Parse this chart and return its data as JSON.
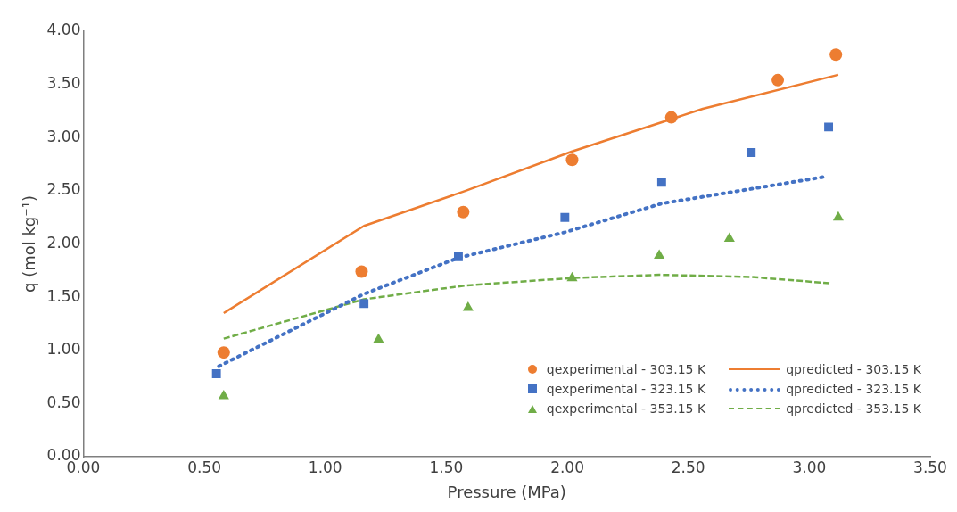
{
  "chart_data": {
    "type": "scatter",
    "xlabel": "Pressure (MPa)",
    "ylabel": "q (mol kg⁻¹)",
    "xlim": [
      0,
      3.5
    ],
    "xticks": [
      {
        "value": 0,
        "label": "0.00"
      },
      {
        "value": 0.5,
        "label": "0.50"
      },
      {
        "value": 1,
        "label": "1.00"
      },
      {
        "value": 1.5,
        "label": "1.50"
      },
      {
        "value": 2,
        "label": "2.00"
      },
      {
        "value": 2.5,
        "label": "2.50"
      },
      {
        "value": 3,
        "label": "3.00"
      },
      {
        "value": 3.5,
        "label": "3.50"
      }
    ],
    "ylim": [
      0,
      4
    ],
    "yticks": [
      {
        "value": 0,
        "label": "0.00"
      },
      {
        "value": 0.5,
        "label": "0.50"
      },
      {
        "value": 1,
        "label": "1.00"
      },
      {
        "value": 1.5,
        "label": "1.50"
      },
      {
        "value": 2,
        "label": "2.00"
      },
      {
        "value": 2.5,
        "label": "2.50"
      },
      {
        "value": 3,
        "label": "3.00"
      },
      {
        "value": 3.5,
        "label": "3.50"
      },
      {
        "value": 4,
        "label": "4.00"
      }
    ],
    "grid": false,
    "legend": "bottom right",
    "series": [
      {
        "name": "qexperimental - 303.15 K",
        "type": "scatter",
        "marker": "circle",
        "color": "#ed7d31",
        "x": [
          0.58,
          1.15,
          1.57,
          2.02,
          2.43,
          2.87,
          3.11
        ],
        "values": [
          0.98,
          1.74,
          2.3,
          2.79,
          3.19,
          3.54,
          3.78
        ]
      },
      {
        "name": "qpredicted - 303.15 K",
        "type": "line",
        "marker": "none",
        "line_style": "solid",
        "color": "#ed7d31",
        "x": [
          0.58,
          1.16,
          1.58,
          2.02,
          2.56,
          3.12
        ],
        "values": [
          1.35,
          2.17,
          2.5,
          2.87,
          3.27,
          3.59
        ]
      },
      {
        "name": "qexperimental - 323.15 K",
        "type": "scatter",
        "marker": "square",
        "color": "#4472c4",
        "x": [
          0.55,
          1.16,
          1.55,
          1.99,
          2.39,
          2.76,
          3.08
        ],
        "values": [
          0.78,
          1.44,
          1.88,
          2.25,
          2.58,
          2.86,
          3.1
        ]
      },
      {
        "name": "qpredicted - 323.15 K",
        "type": "line",
        "marker": "none",
        "line_style": "dotted",
        "color": "#4472c4",
        "x": [
          0.56,
          1.16,
          1.55,
          1.99,
          2.39,
          3.06
        ],
        "values": [
          0.85,
          1.53,
          1.87,
          2.11,
          2.38,
          2.63
        ]
      },
      {
        "name": "qexperimental - 353.15 K",
        "type": "scatter",
        "marker": "triangle",
        "color": "#70ad47",
        "x": [
          0.58,
          1.22,
          1.59,
          2.02,
          2.38,
          2.67,
          3.12
        ],
        "values": [
          0.57,
          1.1,
          1.4,
          1.68,
          1.89,
          2.05,
          2.25
        ]
      },
      {
        "name": "qpredicted - 353.15 K",
        "type": "line",
        "marker": "none",
        "line_style": "dashed",
        "color": "#70ad47",
        "x": [
          0.58,
          1.16,
          1.58,
          2.02,
          2.38,
          2.76,
          3.09
        ],
        "values": [
          1.11,
          1.48,
          1.61,
          1.68,
          1.71,
          1.69,
          1.63
        ]
      }
    ]
  }
}
